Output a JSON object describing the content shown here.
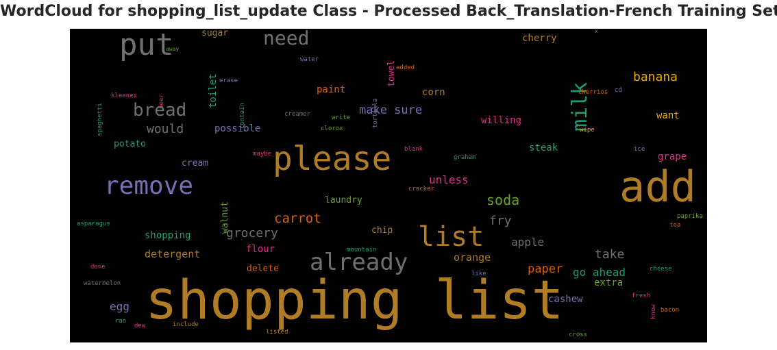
{
  "title": "WordCloud for shopping_list_update Class - Processed Back_Translation-French Training Set",
  "palette": {
    "gold": "#b07c26",
    "gray": "#707070",
    "teal": "#1b9e77",
    "orange": "#d95f02",
    "purple": "#7570b3",
    "pink": "#e7298a",
    "green": "#66a61e",
    "yellow": "#e6ab02",
    "brown": "#a6761d"
  },
  "words": [
    {
      "text": "shopping list",
      "color": "#b07c26"
    },
    {
      "text": "add",
      "color": "#b07c26"
    },
    {
      "text": "please",
      "color": "#b07c26"
    },
    {
      "text": "remove",
      "color": "#7570b3"
    },
    {
      "text": "list",
      "color": "#b07c26"
    },
    {
      "text": "put",
      "color": "#707070"
    },
    {
      "text": "already",
      "color": "#707070"
    },
    {
      "text": "milk",
      "color": "#1b9e77"
    },
    {
      "text": "need",
      "color": "#707070"
    },
    {
      "text": "bread",
      "color": "#707070"
    },
    {
      "text": "soda",
      "color": "#66a61e"
    },
    {
      "text": "carrot",
      "color": "#d95f02"
    },
    {
      "text": "banana",
      "color": "#e6ab02"
    },
    {
      "text": "make sure",
      "color": "#7570b3"
    },
    {
      "text": "fry",
      "color": "#707070"
    },
    {
      "text": "would",
      "color": "#707070"
    },
    {
      "text": "grocery",
      "color": "#707070"
    },
    {
      "text": "take",
      "color": "#707070"
    },
    {
      "text": "paper",
      "color": "#d95f02"
    },
    {
      "text": "unless",
      "color": "#e7298a"
    },
    {
      "text": "apple",
      "color": "#707070"
    },
    {
      "text": "orange",
      "color": "#b07c26"
    },
    {
      "text": "go ahead",
      "color": "#1b9e77"
    },
    {
      "text": "egg",
      "color": "#7570b3"
    },
    {
      "text": "willing",
      "color": "#e7298a"
    },
    {
      "text": "possible",
      "color": "#7570b3"
    },
    {
      "text": "detergent",
      "color": "#b07c26"
    },
    {
      "text": "shopping",
      "color": "#1b9e77"
    },
    {
      "text": "want",
      "color": "#e6ab02"
    },
    {
      "text": "grape",
      "color": "#e7298a"
    },
    {
      "text": "cherry",
      "color": "#b07c26"
    },
    {
      "text": "steak",
      "color": "#1b9e77"
    },
    {
      "text": "cashew",
      "color": "#7570b3"
    },
    {
      "text": "extra",
      "color": "#66a61e"
    },
    {
      "text": "potato",
      "color": "#1b9e77"
    },
    {
      "text": "cream",
      "color": "#7570b3"
    },
    {
      "text": "paint",
      "color": "#d95f02"
    },
    {
      "text": "corn",
      "color": "#b07c26"
    },
    {
      "text": "flour",
      "color": "#e7298a"
    },
    {
      "text": "delete",
      "color": "#d95f02"
    },
    {
      "text": "chip",
      "color": "#b07c26"
    },
    {
      "text": "laundry",
      "color": "#66a61e"
    },
    {
      "text": "sugar",
      "color": "#b07c26"
    },
    {
      "text": "toilet",
      "color": "#1b9e77"
    },
    {
      "text": "towel",
      "color": "#e7298a"
    },
    {
      "text": "walnut",
      "color": "#66a61e"
    },
    {
      "text": "water",
      "color": "#7570b3"
    },
    {
      "text": "added",
      "color": "#d95f02"
    },
    {
      "text": "erase",
      "color": "#7570b3"
    },
    {
      "text": "contain",
      "color": "#1b9e77"
    },
    {
      "text": "tortilla",
      "color": "#7570b3"
    },
    {
      "text": "spaghetti",
      "color": "#1b9e77"
    },
    {
      "text": "kleenex",
      "color": "#e7298a"
    },
    {
      "text": "beer",
      "color": "#e7298a"
    },
    {
      "text": "away",
      "color": "#66a61e"
    },
    {
      "text": "creamer",
      "color": "#707070"
    },
    {
      "text": "write",
      "color": "#66a61e"
    },
    {
      "text": "clorox",
      "color": "#66a61e"
    },
    {
      "text": "cherrios",
      "color": "#d95f02"
    },
    {
      "text": "cd",
      "color": "#7570b3"
    },
    {
      "text": "wipe",
      "color": "#e6ab02"
    },
    {
      "text": "ice",
      "color": "#7570b3"
    },
    {
      "text": "maybe",
      "color": "#e7298a"
    },
    {
      "text": "blank",
      "color": "#e7298a"
    },
    {
      "text": "graham",
      "color": "#1b9e77"
    },
    {
      "text": "cracker",
      "color": "#d95f02"
    },
    {
      "text": "asparagus",
      "color": "#1b9e77"
    },
    {
      "text": "paprika",
      "color": "#66a61e"
    },
    {
      "text": "tea",
      "color": "#d95f02"
    },
    {
      "text": "mountain",
      "color": "#1b9e77"
    },
    {
      "text": "done",
      "color": "#e7298a"
    },
    {
      "text": "cheese",
      "color": "#1b9e77"
    },
    {
      "text": "watermelon",
      "color": "#707070"
    },
    {
      "text": "like",
      "color": "#7570b3"
    },
    {
      "text": "fresh",
      "color": "#e7298a"
    },
    {
      "text": "know",
      "color": "#e7298a"
    },
    {
      "text": "ran",
      "color": "#1b9e77"
    },
    {
      "text": "dew",
      "color": "#e7298a"
    },
    {
      "text": "include",
      "color": "#b07c26"
    },
    {
      "text": "bacon",
      "color": "#d95f02"
    },
    {
      "text": "listed",
      "color": "#b07c26"
    },
    {
      "text": "cross",
      "color": "#66a61e"
    },
    {
      "text": "x",
      "color": "#7570b3"
    }
  ]
}
